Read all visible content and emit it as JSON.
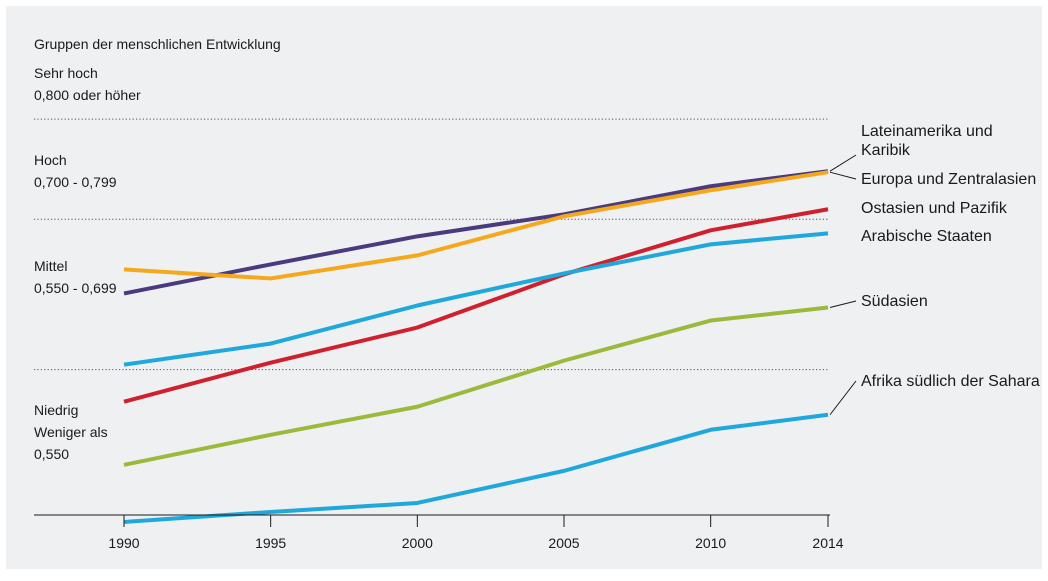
{
  "chart_data": {
    "type": "line",
    "subtitle": "Gruppen der menschlichen Entwicklung",
    "x": [
      1990,
      1995,
      2000,
      2005,
      2010,
      2014
    ],
    "x_tick_labels": [
      "1990",
      "1995",
      "2000",
      "2005",
      "2010",
      "2014"
    ],
    "ylim": [
      0.4,
      0.83
    ],
    "grid": "dotted threshold lines at 0.550, 0.700, 0.800",
    "bands": [
      {
        "lines": [
          "Sehr hoch",
          "0,800 oder höher"
        ],
        "threshold": 0.8
      },
      {
        "lines": [
          "Hoch",
          "0,700 - 0,799"
        ],
        "threshold": 0.7
      },
      {
        "lines": [
          "Mittel",
          "0,550 - 0,699"
        ],
        "threshold": 0.55
      },
      {
        "lines": [
          "Niedrig",
          "Weniger als",
          "0,550"
        ],
        "threshold": null
      }
    ],
    "series": [
      {
        "name": "Lateinamerika und Karibik",
        "label_lines": [
          "Lateinamerika und",
          "Karibik"
        ],
        "color": "#4a3a7e",
        "x": [
          1990,
          1995,
          2000,
          2005,
          2010,
          2014
        ],
        "values": [
          0.626,
          0.655,
          0.683,
          0.705,
          0.733,
          0.748
        ]
      },
      {
        "name": "Europa und Zentralasien",
        "label_lines": [
          "Europa und Zentralasien"
        ],
        "color": "#f6a81c",
        "x": [
          1990,
          1995,
          2000,
          2005,
          2010,
          2014
        ],
        "values": [
          0.65,
          0.641,
          0.664,
          0.703,
          0.729,
          0.747
        ]
      },
      {
        "name": "Ostasien und Pazifik",
        "label_lines": [
          "Ostasien und Pazifik"
        ],
        "color": "#d0202e",
        "x": [
          1990,
          1995,
          2000,
          2005,
          2010,
          2014
        ],
        "values": [
          0.518,
          0.557,
          0.592,
          0.645,
          0.689,
          0.71
        ]
      },
      {
        "name": "Arabische Staaten",
        "label_lines": [
          "Arabische Staaten"
        ],
        "color": "#20a8dc",
        "x": [
          1990,
          1995,
          2000,
          2005,
          2010,
          2014
        ],
        "values": [
          0.555,
          0.576,
          0.614,
          0.646,
          0.675,
          0.686
        ]
      },
      {
        "name": "Südasien",
        "label_lines": [
          "Südasien"
        ],
        "color": "#9bba3c",
        "x": [
          1990,
          1995,
          2000,
          2005,
          2010,
          2014
        ],
        "values": [
          0.455,
          0.485,
          0.513,
          0.559,
          0.599,
          0.612
        ]
      },
      {
        "name": "Afrika südlich der Sahara",
        "label_lines": [
          "Afrika südlich der Sahara"
        ],
        "color": "#20a8dc",
        "x": [
          1990,
          1995,
          2000,
          2005,
          2010,
          2014
        ],
        "values": [
          0.398,
          0.408,
          0.417,
          0.449,
          0.49,
          0.505
        ]
      }
    ]
  }
}
